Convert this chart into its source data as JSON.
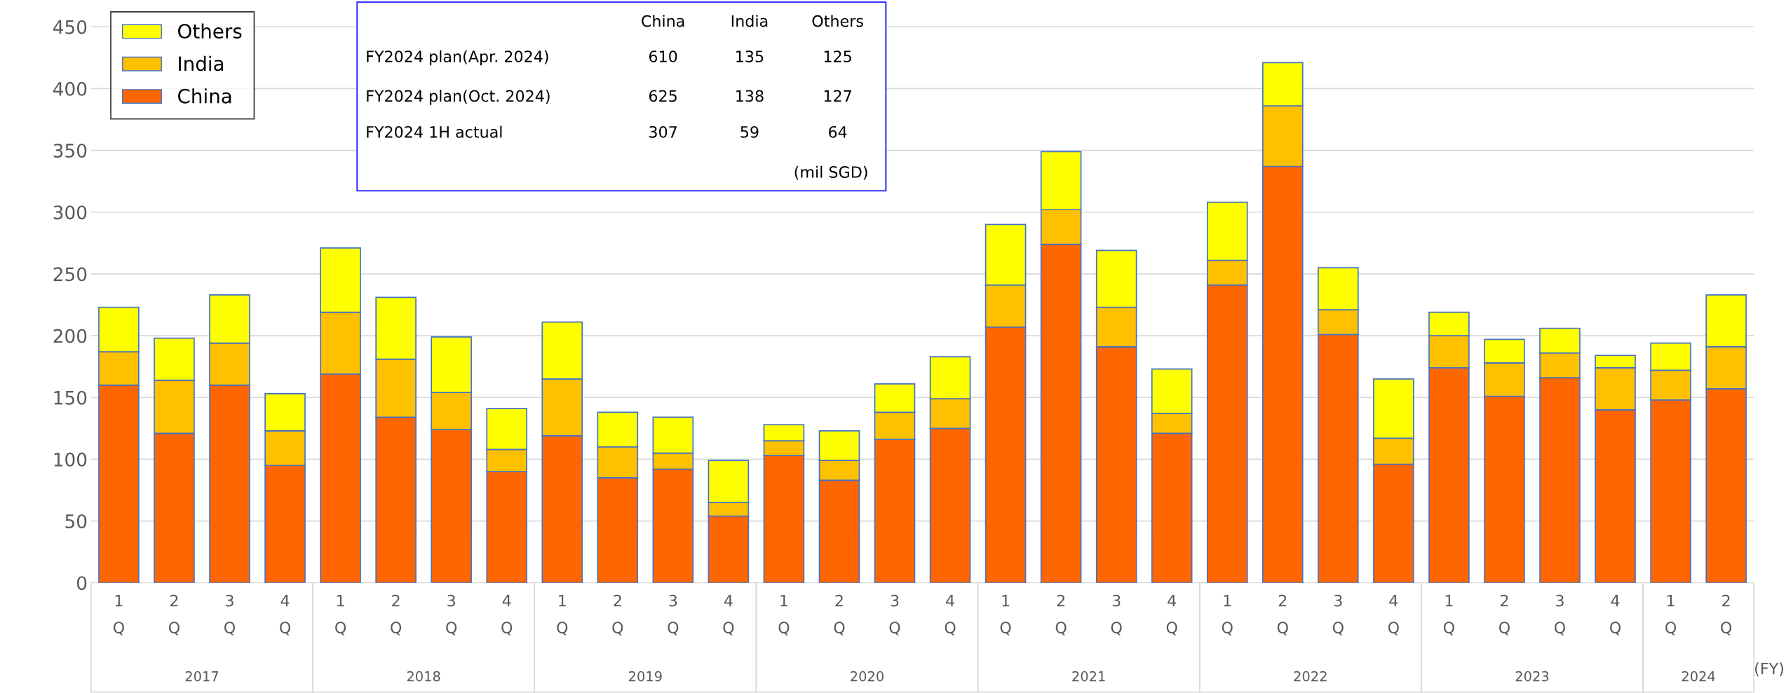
{
  "chart_data": {
    "type": "bar",
    "stacked": true,
    "categories": [
      "1Q",
      "2Q",
      "3Q",
      "4Q",
      "1Q",
      "2Q",
      "3Q",
      "4Q",
      "1Q",
      "2Q",
      "3Q",
      "4Q",
      "1Q",
      "2Q",
      "3Q",
      "4Q",
      "1Q",
      "2Q",
      "3Q",
      "4Q",
      "1Q",
      "2Q",
      "3Q",
      "4Q",
      "1Q",
      "2Q",
      "3Q",
      "4Q",
      "1Q",
      "2Q"
    ],
    "series": [
      {
        "name": "China",
        "color": "#ff6600",
        "values": [
          160,
          121,
          160,
          95,
          169,
          134,
          124,
          90,
          119,
          85,
          92,
          54,
          103,
          83,
          116,
          125,
          207,
          274,
          191,
          121,
          241,
          337,
          201,
          96,
          174,
          151,
          166,
          140,
          148,
          157
        ]
      },
      {
        "name": "India",
        "color": "#ffc000",
        "values": [
          27,
          43,
          34,
          28,
          50,
          47,
          30,
          18,
          46,
          25,
          13,
          11,
          12,
          16,
          22,
          24,
          34,
          28,
          32,
          16,
          20,
          49,
          20,
          21,
          26,
          27,
          20,
          34,
          24,
          34
        ]
      },
      {
        "name": "Others",
        "color": "#ffff00",
        "values": [
          36,
          34,
          39,
          30,
          52,
          50,
          45,
          33,
          46,
          28,
          29,
          34,
          13,
          24,
          23,
          34,
          49,
          47,
          46,
          36,
          47,
          35,
          34,
          48,
          19,
          19,
          20,
          10,
          22,
          42
        ]
      }
    ],
    "ylim": [
      0,
      470
    ],
    "yticks": [
      0,
      50,
      100,
      150,
      200,
      250,
      300,
      350,
      400,
      450
    ],
    "grid": "y",
    "legend": "top left",
    "annotations": [
      "2017",
      "2018",
      "2019",
      "2020",
      "2021",
      "2022",
      "2023",
      "2024",
      "(FY)",
      "China",
      "India",
      "Others",
      "FY2024 plan(Apr. 2024)",
      "610",
      "135",
      "125",
      "FY2024 plan(Oct. 2024)",
      "625",
      "138",
      "127",
      "FY2024 1H actual",
      "307",
      "59",
      "64",
      "(mil SGD)"
    ]
  }
}
